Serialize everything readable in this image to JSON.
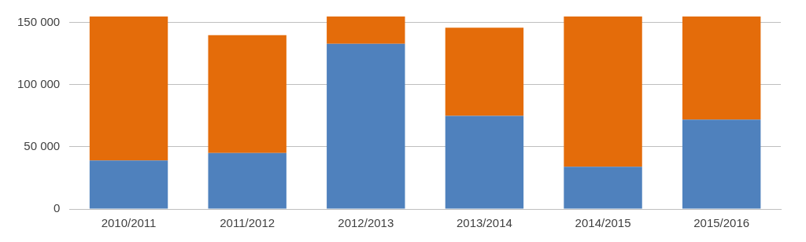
{
  "chart_data": {
    "type": "bar",
    "stacked": true,
    "categories": [
      "2010/2011",
      "2011/2012",
      "2012/2013",
      "2013/2014",
      "2014/2015",
      "2015/2016"
    ],
    "series": [
      {
        "color": "#4f81bd",
        "values": [
          39000,
          45000,
          133000,
          75000,
          34000,
          72000
        ]
      },
      {
        "color": "#e46c0a",
        "values": [
          116000,
          95000,
          22000,
          71000,
          121000,
          83000
        ]
      }
    ],
    "ylim": [
      0,
      155000
    ],
    "yticks": [
      {
        "value": 0,
        "label": "0"
      },
      {
        "value": 50000,
        "label": "50 000"
      },
      {
        "value": 100000,
        "label": "100 000"
      },
      {
        "value": 150000,
        "label": "150 000"
      }
    ],
    "grid": "y",
    "legend": false
  }
}
